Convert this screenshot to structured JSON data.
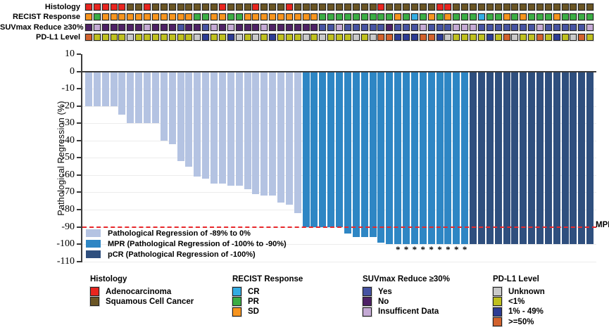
{
  "figure": {
    "mpr_line_label": "MPR",
    "ylabel": "Pathological Regression (%)"
  },
  "annotation_tracks": [
    {
      "label": "Histology",
      "categories": {
        "A": {
          "name": "Adenocarcinoma",
          "color": "#e8251f"
        },
        "S": {
          "name": "Squamous Cell Cancer",
          "color": "#6a5524"
        }
      },
      "values": [
        "A",
        "A",
        "A",
        "A",
        "A",
        "S",
        "S",
        "A",
        "S",
        "S",
        "S",
        "S",
        "S",
        "S",
        "S",
        "S",
        "A",
        "S",
        "S",
        "S",
        "A",
        "S",
        "S",
        "S",
        "A",
        "S",
        "S",
        "S",
        "S",
        "S",
        "S",
        "S",
        "S",
        "S",
        "S",
        "A",
        "S",
        "S",
        "S",
        "S",
        "S",
        "S",
        "A",
        "A",
        "S",
        "S",
        "S",
        "S",
        "S",
        "S",
        "S",
        "S",
        "S",
        "S",
        "S",
        "S",
        "S",
        "S",
        "S",
        "S",
        "S"
      ]
    },
    {
      "label": "RECIST Response",
      "categories": {
        "CR": {
          "name": "CR",
          "color": "#33ace3"
        },
        "PR": {
          "name": "PR",
          "color": "#3bad44"
        },
        "SD": {
          "name": "SD",
          "color": "#f7941e"
        }
      },
      "values": [
        "SD",
        "PR",
        "SD",
        "SD",
        "SD",
        "SD",
        "SD",
        "SD",
        "SD",
        "SD",
        "SD",
        "SD",
        "SD",
        "PR",
        "PR",
        "SD",
        "SD",
        "PR",
        "PR",
        "SD",
        "SD",
        "SD",
        "SD",
        "SD",
        "SD",
        "SD",
        "SD",
        "SD",
        "PR",
        "PR",
        "PR",
        "PR",
        "PR",
        "PR",
        "PR",
        "PR",
        "PR",
        "SD",
        "PR",
        "CR",
        "PR",
        "SD",
        "PR",
        "SD",
        "PR",
        "PR",
        "PR",
        "CR",
        "PR",
        "PR",
        "SD",
        "PR",
        "SD",
        "PR",
        "PR",
        "PR",
        "SD",
        "PR",
        "PR",
        "PR",
        "PR"
      ]
    },
    {
      "label": "SUVmax Reduce ≥30%",
      "categories": {
        "Y": {
          "name": "Yes",
          "color": "#4653a2"
        },
        "N": {
          "name": "No",
          "color": "#4e2166"
        },
        "I": {
          "name": "Insufficent Data",
          "color": "#c4a9d4"
        }
      },
      "values": [
        "N",
        "I",
        "N",
        "N",
        "N",
        "N",
        "N",
        "I",
        "N",
        "N",
        "N",
        "Y",
        "N",
        "N",
        "Y",
        "I",
        "N",
        "I",
        "N",
        "N",
        "N",
        "I",
        "N",
        "N",
        "N",
        "N",
        "N",
        "N",
        "Y",
        "Y",
        "I",
        "Y",
        "Y",
        "Y",
        "Y",
        "Y",
        "N",
        "Y",
        "Y",
        "Y",
        "I",
        "Y",
        "Y",
        "Y",
        "I",
        "I",
        "I",
        "Y",
        "Y",
        "Y",
        "Y",
        "Y",
        "Y",
        "Y",
        "I",
        "Y",
        "Y",
        "Y",
        "Y",
        "Y",
        "I"
      ]
    },
    {
      "label": "PD-L1 Level",
      "categories": {
        "U": {
          "name": "Unknown",
          "color": "#c9c9c9"
        },
        "L": {
          "name": "<1%",
          "color": "#bfc01f"
        },
        "M": {
          "name": "1% - 49%",
          "color": "#2d3c94"
        },
        "H": {
          "name": ">=50%",
          "color": "#d2622d"
        }
      },
      "values": [
        "H",
        "L",
        "L",
        "L",
        "L",
        "U",
        "L",
        "L",
        "L",
        "L",
        "L",
        "L",
        "L",
        "U",
        "M",
        "L",
        "L",
        "M",
        "U",
        "L",
        "U",
        "L",
        "M",
        "L",
        "L",
        "L",
        "U",
        "L",
        "U",
        "L",
        "L",
        "L",
        "U",
        "L",
        "U",
        "H",
        "H",
        "M",
        "M",
        "M",
        "H",
        "H",
        "M",
        "U",
        "L",
        "L",
        "L",
        "L",
        "M",
        "L",
        "H",
        "U",
        "L",
        "L",
        "H",
        "L",
        "M",
        "L",
        "U",
        "H",
        "L"
      ]
    }
  ],
  "chart_data": {
    "type": "bar",
    "title": "",
    "xlabel": "",
    "ylabel": "Pathological Regression (%)",
    "ylim": [
      -110,
      10
    ],
    "yticks": [
      10,
      0,
      -10,
      -20,
      -30,
      -40,
      -50,
      -60,
      -70,
      -80,
      -90,
      -100,
      -110
    ],
    "n_patients": 61,
    "values": [
      -20,
      -20,
      -20,
      -20,
      -25,
      -30,
      -30,
      -30,
      -30,
      -40,
      -42,
      -52,
      -55,
      -61,
      -62,
      -65,
      -65,
      -66,
      -66,
      -68,
      -71,
      -72,
      -72,
      -76,
      -77,
      -82,
      -90,
      -90,
      -90,
      -90,
      -90,
      -94,
      -96,
      -96,
      -96,
      -99,
      -100,
      -100,
      -100,
      -100,
      -100,
      -100,
      -100,
      -100,
      -100,
      -100,
      -100,
      -100,
      -100,
      -100,
      -100,
      -100,
      -100,
      -100,
      -100,
      -100,
      -100,
      -100,
      -100,
      -100,
      -100
    ],
    "groups": [
      "reg",
      "reg",
      "reg",
      "reg",
      "reg",
      "reg",
      "reg",
      "reg",
      "reg",
      "reg",
      "reg",
      "reg",
      "reg",
      "reg",
      "reg",
      "reg",
      "reg",
      "reg",
      "reg",
      "reg",
      "reg",
      "reg",
      "reg",
      "reg",
      "reg",
      "reg",
      "mpr",
      "mpr",
      "mpr",
      "mpr",
      "mpr",
      "mpr",
      "mpr",
      "mpr",
      "mpr",
      "mpr",
      "mpr",
      "mpr",
      "mpr",
      "mpr",
      "mpr",
      "mpr",
      "mpr",
      "mpr",
      "mpr",
      "mpr",
      "pcr",
      "pcr",
      "pcr",
      "pcr",
      "pcr",
      "pcr",
      "pcr",
      "pcr",
      "pcr",
      "pcr",
      "pcr",
      "pcr",
      "pcr",
      "pcr",
      "pcr"
    ],
    "group_colors": {
      "reg": "#b4c3e2",
      "mpr": "#2e86c4",
      "pcr": "#2f4f7e"
    },
    "asterisk_indices": [
      37,
      38,
      39,
      40,
      41,
      42,
      43,
      44,
      45
    ],
    "mpr_line": {
      "y": -90,
      "label": "MPR",
      "color": "#e8282b",
      "style": "dashed"
    },
    "grid": true,
    "legend_position": "inside bottom-left"
  },
  "plot_legend": [
    {
      "label": "Pathological Regression of -89% to 0%",
      "color": "#b4c3e2"
    },
    {
      "label": "MPR (Pathological Regression of -100% to -90%)",
      "color": "#2e86c4"
    },
    {
      "label": "pCR (Pathological Regression of -100%)",
      "color": "#2f4f7e"
    }
  ],
  "bottom_legend": [
    {
      "title": "Histology",
      "items": [
        {
          "label": "Adenocarcinoma",
          "color": "#e8251f"
        },
        {
          "label": "Squamous Cell Cancer",
          "color": "#6a5524"
        }
      ]
    },
    {
      "title": "RECIST Response",
      "items": [
        {
          "label": "CR",
          "color": "#33ace3"
        },
        {
          "label": "PR",
          "color": "#3bad44"
        },
        {
          "label": "SD",
          "color": "#f7941e"
        }
      ]
    },
    {
      "title": "SUVmax Reduce ≥30%",
      "items": [
        {
          "label": "Yes",
          "color": "#4653a2"
        },
        {
          "label": "No",
          "color": "#4e2166"
        },
        {
          "label": "Insufficent Data",
          "color": "#c4a9d4"
        }
      ]
    },
    {
      "title": "PD-L1 Level",
      "items": [
        {
          "label": "Unknown",
          "color": "#c9c9c9"
        },
        {
          "label": "<1%",
          "color": "#bfc01f"
        },
        {
          "label": "1% - 49%",
          "color": "#2d3c94"
        },
        {
          "label": ">=50%",
          "color": "#d2622d"
        }
      ]
    }
  ]
}
